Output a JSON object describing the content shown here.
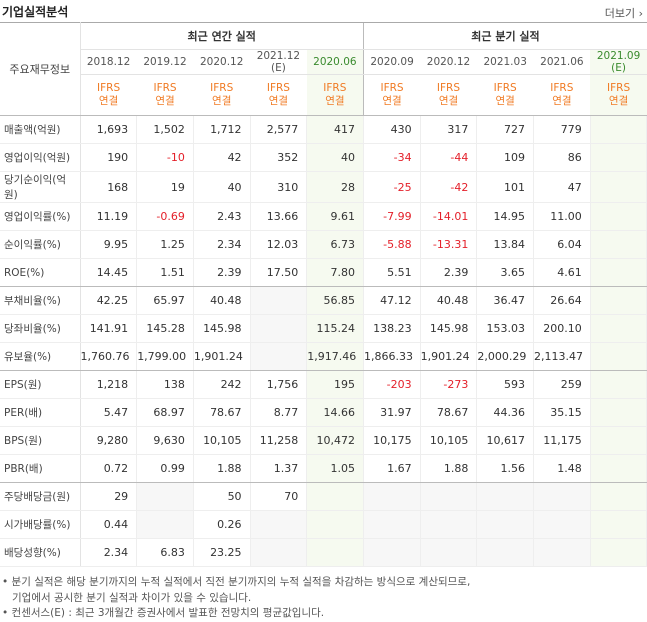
{
  "header": {
    "title": "기업실적분석",
    "more": "더보기"
  },
  "table": {
    "corner": "주요재무정보",
    "groups": [
      "최근 연간 실적",
      "최근 분기 실적"
    ],
    "periods": [
      "2018.12",
      "2019.12",
      "2020.12",
      "2021.12 (E)",
      "2020.06",
      "2020.09",
      "2020.12",
      "2021.03",
      "2021.06",
      "2021.09 (E)"
    ],
    "accounting": [
      [
        "IFRS",
        "연결"
      ],
      [
        "IFRS",
        "연결"
      ],
      [
        "IFRS",
        "연결"
      ],
      [
        "IFRS",
        "연결"
      ],
      [
        "IFRS",
        "연결"
      ],
      [
        "IFRS",
        "연결"
      ],
      [
        "IFRS",
        "연결"
      ],
      [
        "IFRS",
        "연결"
      ],
      [
        "IFRS",
        "연결"
      ],
      [
        "IFRS",
        "연결"
      ]
    ],
    "rows": [
      {
        "label": "매출액(억원)",
        "cells": [
          "1,693",
          "1,502",
          "1,712",
          "2,577",
          "417",
          "430",
          "317",
          "727",
          "779",
          null
        ]
      },
      {
        "label": "영업이익(억원)",
        "cells": [
          "190",
          "-10",
          "42",
          "352",
          "40",
          "-34",
          "-44",
          "109",
          "86",
          null
        ]
      },
      {
        "label": "당기순이익(억원)",
        "cells": [
          "168",
          "19",
          "40",
          "310",
          "28",
          "-25",
          "-42",
          "101",
          "47",
          null
        ]
      },
      {
        "label": "영업이익률(%)",
        "cells": [
          "11.19",
          "-0.69",
          "2.43",
          "13.66",
          "9.61",
          "-7.99",
          "-14.01",
          "14.95",
          "11.00",
          null
        ]
      },
      {
        "label": "순이익률(%)",
        "cells": [
          "9.95",
          "1.25",
          "2.34",
          "12.03",
          "6.73",
          "-5.88",
          "-13.31",
          "13.84",
          "6.04",
          null
        ]
      },
      {
        "label": "ROE(%)",
        "cells": [
          "14.45",
          "1.51",
          "2.39",
          "17.50",
          "7.80",
          "5.51",
          "2.39",
          "3.65",
          "4.61",
          null
        ]
      },
      {
        "label": "부채비율(%)",
        "cells": [
          "42.25",
          "65.97",
          "40.48",
          null,
          "56.85",
          "47.12",
          "40.48",
          "36.47",
          "26.64",
          null
        ]
      },
      {
        "label": "당좌비율(%)",
        "cells": [
          "141.91",
          "145.28",
          "145.98",
          null,
          "115.24",
          "138.23",
          "145.98",
          "153.03",
          "200.10",
          null
        ]
      },
      {
        "label": "유보율(%)",
        "cells": [
          "1,760.76",
          "1,799.00",
          "1,901.24",
          null,
          "1,917.46",
          "1,866.33",
          "1,901.24",
          "2,000.29",
          "2,113.47",
          null
        ]
      },
      {
        "label": "EPS(원)",
        "cells": [
          "1,218",
          "138",
          "242",
          "1,756",
          "195",
          "-203",
          "-273",
          "593",
          "259",
          null
        ]
      },
      {
        "label": "PER(배)",
        "cells": [
          "5.47",
          "68.97",
          "78.67",
          "8.77",
          "14.66",
          "31.97",
          "78.67",
          "44.36",
          "35.15",
          null
        ]
      },
      {
        "label": "BPS(원)",
        "cells": [
          "9,280",
          "9,630",
          "10,105",
          "11,258",
          "10,472",
          "10,175",
          "10,105",
          "10,617",
          "11,175",
          null
        ]
      },
      {
        "label": "PBR(배)",
        "cells": [
          "0.72",
          "0.99",
          "1.88",
          "1.37",
          "1.05",
          "1.67",
          "1.88",
          "1.56",
          "1.48",
          null
        ]
      },
      {
        "label": "주당배당금(원)",
        "cells": [
          "29",
          null,
          "50",
          "70",
          null,
          null,
          null,
          null,
          null,
          null
        ]
      },
      {
        "label": "시가배당률(%)",
        "cells": [
          "0.44",
          null,
          "0.26",
          null,
          null,
          null,
          null,
          null,
          null,
          null
        ]
      },
      {
        "label": "배당성향(%)",
        "cells": [
          "2.34",
          "6.83",
          "23.25",
          null,
          null,
          null,
          null,
          null,
          null,
          null
        ]
      }
    ]
  },
  "notes": [
    "• 분기 실적은 해당 분기까지의 누적 실적에서 직전 분기까지의 누적 실적을 차감하는 방식으로 계산되므로,",
    "기업에서 공시한 분기 실적과 차이가 있을 수 있습니다.",
    "• 컨센서스(E) : 최근 3개월간 증권사에서 발표한 전망치의 평균값입니다."
  ]
}
